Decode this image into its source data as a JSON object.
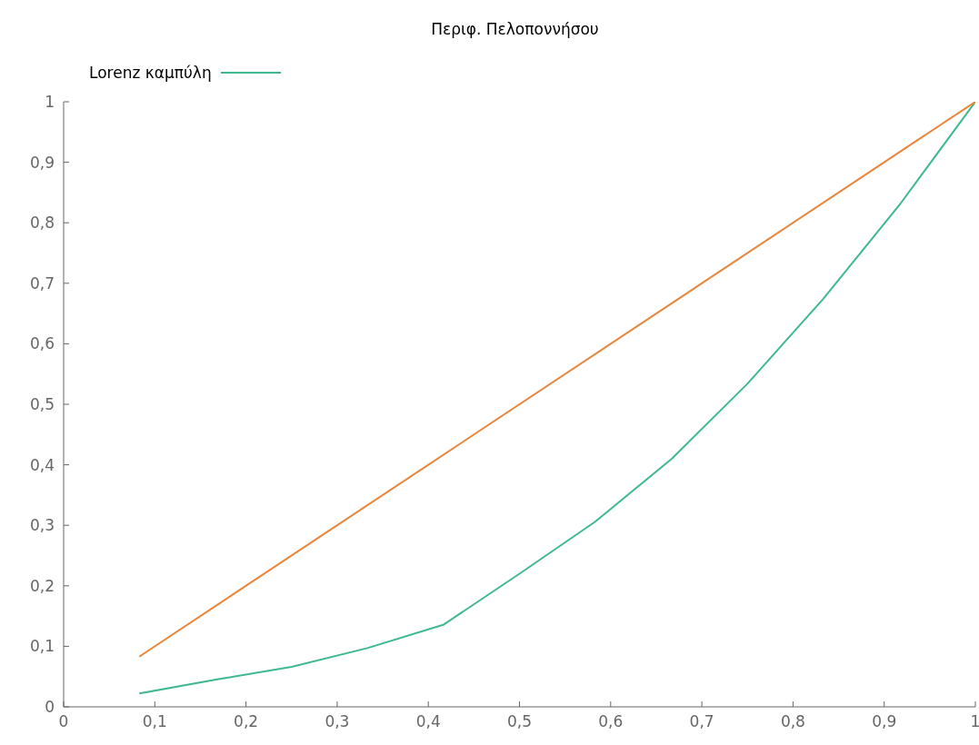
{
  "chart_data": {
    "type": "line",
    "title": "Περιφ. Πελοποννήσου",
    "xlim": [
      0,
      1
    ],
    "ylim": [
      0,
      1
    ],
    "xticks": [
      0,
      {
        "value": 0.1,
        "label": "0,1"
      },
      {
        "value": 0.2,
        "label": "0,2"
      },
      {
        "value": 0.3,
        "label": "0,3"
      },
      {
        "value": 0.4,
        "label": "0,4"
      },
      {
        "value": 0.5,
        "label": "0,5"
      },
      {
        "value": 0.6,
        "label": "0,6"
      },
      {
        "value": 0.7,
        "label": "0,7"
      },
      {
        "value": 0.8,
        "label": "0,8"
      },
      {
        "value": 0.9,
        "label": "0,9"
      },
      1
    ],
    "yticks": [
      0,
      {
        "value": 0.1,
        "label": "0,1"
      },
      {
        "value": 0.2,
        "label": "0,2"
      },
      {
        "value": 0.3,
        "label": "0,3"
      },
      {
        "value": 0.4,
        "label": "0,4"
      },
      {
        "value": 0.5,
        "label": "0,5"
      },
      {
        "value": 0.6,
        "label": "0,6"
      },
      {
        "value": 0.7,
        "label": "0,7"
      },
      {
        "value": 0.8,
        "label": "0,8"
      },
      {
        "value": 0.9,
        "label": "0,9"
      },
      1
    ],
    "grid": false,
    "legend": "top left",
    "marker": "none",
    "line_style": "solid",
    "series": [
      {
        "name": "Lorenz καμπύλη",
        "color": "#3db88f",
        "x": [
          0.083,
          0.167,
          0.25,
          0.333,
          0.417,
          0.5,
          0.583,
          0.667,
          0.75,
          0.833,
          0.917,
          1
        ],
        "values": [
          0.022,
          0.045,
          0.066,
          0.097,
          0.136,
          0.22,
          0.306,
          0.41,
          0.534,
          0.674,
          0.83,
          1
        ]
      },
      {
        "color": "#e8853a",
        "x": [
          0.083,
          1
        ],
        "values": [
          0.083,
          1
        ]
      }
    ]
  }
}
